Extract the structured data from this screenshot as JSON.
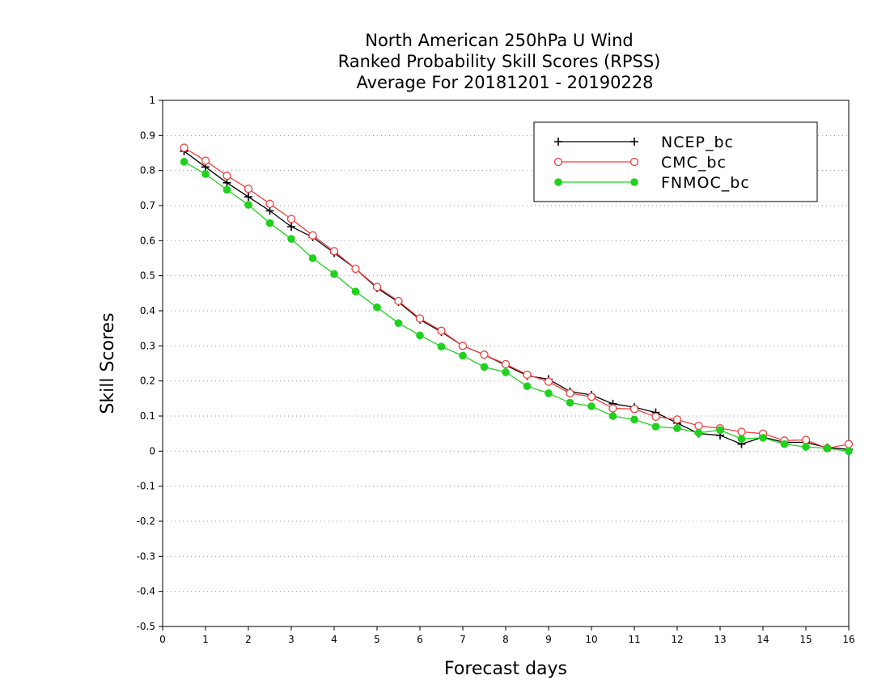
{
  "chart_data": {
    "type": "line",
    "title": [
      "North American 250hPa U Wind",
      "Ranked Probability Skill Scores (RPSS)",
      "Average For 20181201 - 20190228"
    ],
    "xlabel": "Forecast days",
    "ylabel": "Skill Scores",
    "xlim": [
      0,
      16
    ],
    "ylim": [
      -0.5,
      1
    ],
    "xticks": [
      0,
      1,
      2,
      3,
      4,
      5,
      6,
      7,
      8,
      9,
      10,
      11,
      12,
      13,
      14,
      15,
      16
    ],
    "yticks": [
      -0.5,
      -0.4,
      -0.3,
      -0.2,
      -0.1,
      0,
      0.1,
      0.2,
      0.3,
      0.4,
      0.5,
      0.6,
      0.7,
      0.8,
      0.9,
      1
    ],
    "ytick_labels": [
      "-0.5",
      "-0.4",
      "-0.3",
      "-0.2",
      "-0.1",
      "0",
      "0.1",
      "0.2",
      "0.3",
      "0.4",
      "0.5",
      "0.6",
      "0.7",
      "0.8",
      "0.9",
      "1"
    ],
    "grid": "horizontal dotted",
    "legend_position": "top-right",
    "x": [
      0.5,
      1,
      1.5,
      2,
      2.5,
      3,
      3.5,
      4,
      4.5,
      5,
      5.5,
      6,
      6.5,
      7,
      7.5,
      8,
      8.5,
      9,
      9.5,
      10,
      10.5,
      11,
      11.5,
      12,
      12.5,
      13,
      13.5,
      14,
      14.5,
      15,
      15.5,
      16
    ],
    "series": [
      {
        "name": "NCEP_bc",
        "color": "#000000",
        "marker": "plus",
        "values": [
          0.855,
          0.81,
          0.765,
          0.725,
          0.685,
          0.64,
          0.61,
          0.565,
          0.52,
          0.465,
          0.425,
          0.375,
          0.34,
          0.3,
          0.275,
          0.245,
          0.215,
          0.205,
          0.17,
          0.16,
          0.135,
          0.125,
          0.11,
          0.08,
          0.05,
          0.045,
          0.02,
          0.04,
          0.025,
          0.025,
          0.01,
          0.005
        ]
      },
      {
        "name": "CMC_bc",
        "color": "#f04040",
        "marker": "open-circle",
        "values": [
          0.865,
          0.828,
          0.785,
          0.748,
          0.705,
          0.662,
          0.615,
          0.57,
          0.52,
          0.468,
          0.428,
          0.378,
          0.343,
          0.3,
          0.275,
          0.248,
          0.218,
          0.198,
          0.165,
          0.155,
          0.122,
          0.12,
          0.098,
          0.09,
          0.072,
          0.065,
          0.055,
          0.05,
          0.03,
          0.032,
          0.008,
          0.02
        ]
      },
      {
        "name": "FNMOC_bc",
        "color": "#1ed21e",
        "marker": "filled-circle",
        "values": [
          0.825,
          0.79,
          0.745,
          0.702,
          0.65,
          0.605,
          0.55,
          0.505,
          0.455,
          0.41,
          0.365,
          0.33,
          0.298,
          0.272,
          0.24,
          0.225,
          0.185,
          0.165,
          0.138,
          0.128,
          0.1,
          0.09,
          0.07,
          0.065,
          0.052,
          0.06,
          0.035,
          0.038,
          0.02,
          0.012,
          0.008,
          0.0
        ]
      }
    ]
  }
}
